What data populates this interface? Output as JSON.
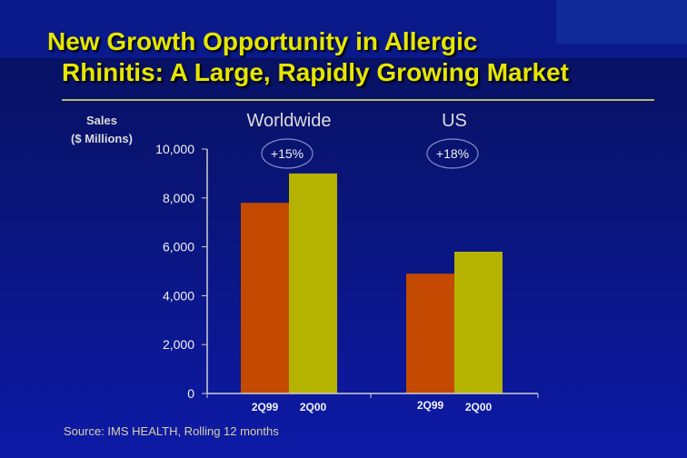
{
  "slide": {
    "title_line1": "New Growth Opportunity in Allergic",
    "title_line2": "Rhinitis: A Large, Rapidly Growing Market",
    "source": "Source: IMS HEALTH, Rolling 12 months"
  },
  "chart_data": {
    "type": "bar",
    "ylabel": "Sales\n($ Millions)",
    "ylim": [
      0,
      10000
    ],
    "yticks": [
      "0",
      "2,000",
      "4,000",
      "6,000",
      "8,000",
      "10,000"
    ],
    "groups": [
      {
        "name": "Worldwide",
        "growth": "+15%",
        "bars": [
          {
            "label": "2Q99",
            "value": 7800,
            "color": "#c34a00"
          },
          {
            "label": "2Q00",
            "value": 9000,
            "color": "#b5b200"
          }
        ]
      },
      {
        "name": "US",
        "growth": "+18%",
        "bars": [
          {
            "label": "2Q99",
            "value": 4900,
            "color": "#c34a00"
          },
          {
            "label": "2Q00",
            "value": 5800,
            "color": "#b5b200"
          }
        ]
      }
    ]
  }
}
